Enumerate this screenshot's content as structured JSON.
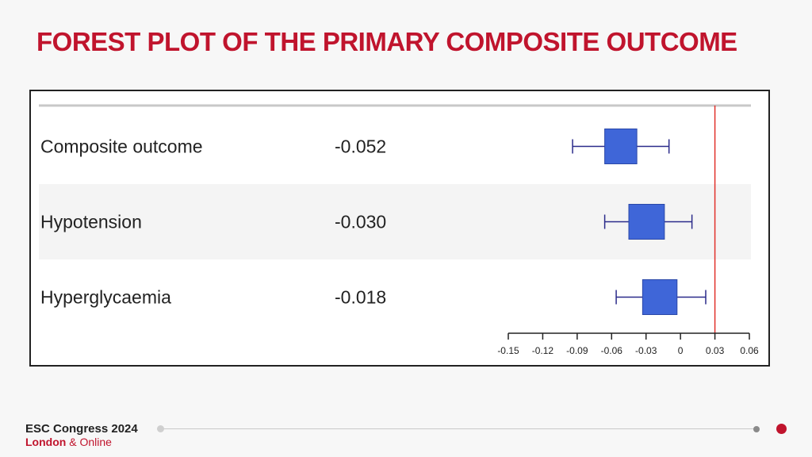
{
  "slide": {
    "title": "FOREST PLOT OF THE PRIMARY COMPOSITE OUTCOME"
  },
  "footer": {
    "line1": "ESC Congress 2024",
    "london": "London",
    "amp": "&",
    "online": "Online"
  },
  "chart_data": {
    "type": "forest",
    "title": "",
    "xlabel": "",
    "ylabel": "",
    "xlim": [
      -0.15,
      0.06
    ],
    "xticks": [
      -0.15,
      -0.12,
      -0.09,
      -0.06,
      -0.03,
      0,
      0.03,
      0.06
    ],
    "xtick_labels": [
      "-0.15",
      "-0.12",
      "-0.09",
      "-0.06",
      "-0.03",
      "0",
      "0.03",
      "0.06"
    ],
    "reference_line": 0.03,
    "reference_color": "#e0302a",
    "marker_color": "#3f66d8",
    "rows": [
      {
        "label": "Composite outcome",
        "estimate_text": "-0.052",
        "estimate": -0.052,
        "ci_low": -0.094,
        "ci_high": -0.01,
        "box_low": -0.066,
        "box_high": -0.038
      },
      {
        "label": "Hypotension",
        "estimate_text": "-0.030",
        "estimate": -0.03,
        "ci_low": -0.066,
        "ci_high": 0.01,
        "box_low": -0.045,
        "box_high": -0.014
      },
      {
        "label": "Hyperglycaemia",
        "estimate_text": "-0.018",
        "estimate": -0.018,
        "ci_low": -0.056,
        "ci_high": 0.022,
        "box_low": -0.033,
        "box_high": -0.003
      }
    ]
  }
}
